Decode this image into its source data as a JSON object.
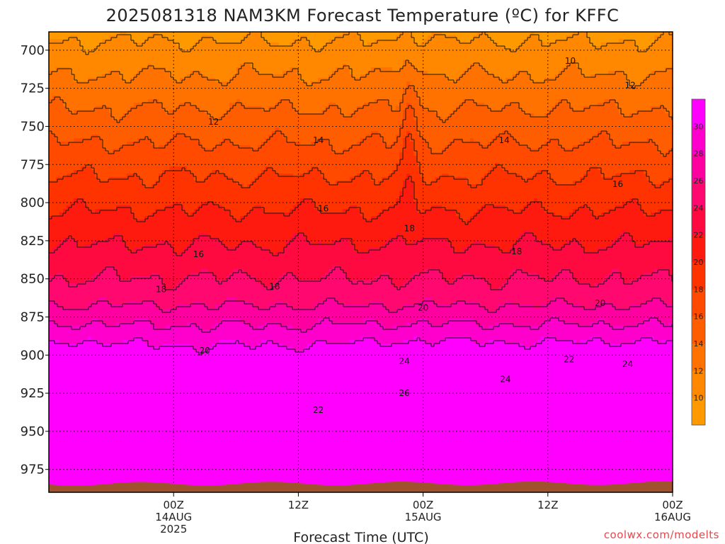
{
  "title": "2025081318 NAM3KM Forecast Temperature (ºC) for KFFC",
  "xlabel": "Forecast Time (UTC)",
  "credit": "coolwx.com/modelts",
  "chart_data": {
    "type": "heatmap",
    "variable": "Temperature",
    "units": "ºC",
    "yaxis": {
      "label": "",
      "scale": "pressure (hPa), decreasing upward",
      "range": [
        990,
        688
      ],
      "ticks": [
        "700",
        "725",
        "750",
        "775",
        "800",
        "825",
        "850",
        "875",
        "900",
        "925",
        "950",
        "975"
      ]
    },
    "xaxis": {
      "range_hours": [
        -10,
        40
      ],
      "ticks": [
        {
          "hour": 0,
          "line1": "00Z",
          "line2": "14AUG",
          "line3": "2025"
        },
        {
          "hour": 10,
          "line1": "12Z",
          "line2": "",
          "line3": ""
        },
        {
          "hour": 20,
          "line1": "00Z",
          "line2": "15AUG",
          "line3": ""
        },
        {
          "hour": 30,
          "line1": "12Z",
          "line2": "",
          "line3": ""
        },
        {
          "hour": 40,
          "line1": "00Z",
          "line2": "16AUG",
          "line3": ""
        }
      ]
    },
    "grid": true,
    "colorbar": {
      "position": "right",
      "levels": [
        8,
        10,
        12,
        14,
        16,
        18,
        20,
        22,
        24,
        26,
        28,
        30,
        32
      ],
      "tick_labels": [
        "10",
        "12",
        "14",
        "16",
        "18",
        "20",
        "22",
        "24",
        "26",
        "28",
        "30"
      ],
      "colors": [
        "#ff9900",
        "#ff8800",
        "#ff7200",
        "#ff5e00",
        "#ff4a00",
        "#ff3300",
        "#ff1a10",
        "#ff0a40",
        "#ff0870",
        "#ff00a0",
        "#ff00cc",
        "#ff00ff"
      ]
    },
    "contour_labels": [
      {
        "text": "10",
        "hour": 31.8,
        "p": 707
      },
      {
        "text": "12",
        "hour": 3.2,
        "p": 747
      },
      {
        "text": "12",
        "hour": 36.6,
        "p": 723
      },
      {
        "text": "14",
        "hour": 11.6,
        "p": 759
      },
      {
        "text": "14",
        "hour": 26.5,
        "p": 759
      },
      {
        "text": "16",
        "hour": 2.0,
        "p": 834
      },
      {
        "text": "16",
        "hour": 12.0,
        "p": 804
      },
      {
        "text": "16",
        "hour": 35.6,
        "p": 788
      },
      {
        "text": "18",
        "hour": -1.0,
        "p": 857
      },
      {
        "text": "18",
        "hour": 8.1,
        "p": 855
      },
      {
        "text": "18",
        "hour": 18.9,
        "p": 817
      },
      {
        "text": "18",
        "hour": 27.5,
        "p": 832
      },
      {
        "text": "20",
        "hour": 2.5,
        "p": 897
      },
      {
        "text": "20",
        "hour": 20.0,
        "p": 869
      },
      {
        "text": "20",
        "hour": 34.2,
        "p": 866
      },
      {
        "text": "22",
        "hour": 11.6,
        "p": 936
      },
      {
        "text": "22",
        "hour": 31.7,
        "p": 903
      },
      {
        "text": "24",
        "hour": 18.5,
        "p": 904
      },
      {
        "text": "24",
        "hour": 26.6,
        "p": 916
      },
      {
        "text": "24",
        "hour": 36.4,
        "p": 906
      },
      {
        "text": "26",
        "hour": 18.5,
        "p": 925
      }
    ],
    "terrain_color": "#a0522d"
  }
}
